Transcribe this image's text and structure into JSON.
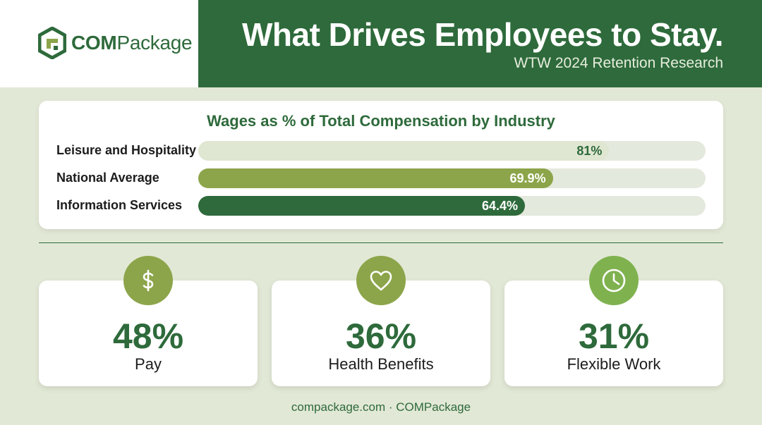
{
  "brand": {
    "name_bold": "COM",
    "name_regular": "Package",
    "logo_icon": "cube-logo-icon",
    "colors": {
      "dark_green": "#2e6a3b",
      "olive": "#8ca54a",
      "light_green": "#7fb24f"
    }
  },
  "header": {
    "title": "What Drives Employees to Stay.",
    "subtitle": "WTW 2024 Retention Research"
  },
  "chart_data": {
    "type": "bar",
    "orientation": "horizontal",
    "title": "Wages as % of Total Compensation by Industry",
    "xlim": [
      0,
      100
    ],
    "grid": false,
    "categories": [
      "Leisure and Hospitality",
      "National Average",
      "Information Services"
    ],
    "values": [
      81,
      69.9,
      64.4
    ],
    "value_labels": [
      "81%",
      "69.9%",
      "64.4%"
    ],
    "bar_colors": [
      "#dfe6d1",
      "#8ca54a",
      "#2e6a3b"
    ],
    "label_colors": [
      "#2e6a3b",
      "#ffffff",
      "#ffffff"
    ]
  },
  "stats": [
    {
      "value": "48%",
      "label": "Pay",
      "icon": "dollar-icon",
      "color": "#8ca54a"
    },
    {
      "value": "36%",
      "label": "Health Benefits",
      "icon": "heart-icon",
      "color": "#8ca54a"
    },
    {
      "value": "31%",
      "label": "Flexible Work",
      "icon": "clock-icon",
      "color": "#7fb24f"
    }
  ],
  "footer": {
    "text": "compackage.com · COMPackage"
  }
}
